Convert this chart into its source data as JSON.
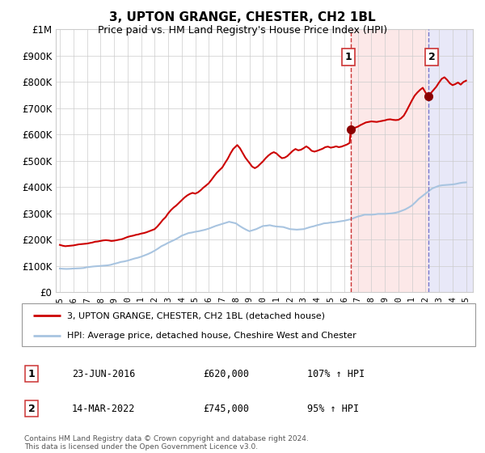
{
  "title": "3, UPTON GRANGE, CHESTER, CH2 1BL",
  "subtitle": "Price paid vs. HM Land Registry's House Price Index (HPI)",
  "ylim": [
    0,
    1000000
  ],
  "yticks": [
    0,
    100000,
    200000,
    300000,
    400000,
    500000,
    600000,
    700000,
    800000,
    900000,
    1000000
  ],
  "ytick_labels": [
    "£0",
    "£100K",
    "£200K",
    "£300K",
    "£400K",
    "£500K",
    "£600K",
    "£700K",
    "£800K",
    "£900K",
    "£1M"
  ],
  "xlim_start": 1994.7,
  "xlim_end": 2025.5,
  "xticks": [
    1995,
    1996,
    1997,
    1998,
    1999,
    2000,
    2001,
    2002,
    2003,
    2004,
    2005,
    2006,
    2007,
    2008,
    2009,
    2010,
    2011,
    2012,
    2013,
    2014,
    2015,
    2016,
    2017,
    2018,
    2019,
    2020,
    2021,
    2022,
    2023,
    2024,
    2025
  ],
  "hpi_color": "#a8c4e0",
  "price_color": "#cc0000",
  "marker_color": "#8b0000",
  "vline1_color": "#cc3333",
  "vline2_color": "#7777cc",
  "shade1_color": "#fce8e8",
  "shade2_color": "#e8e8f8",
  "legend_label1": "3, UPTON GRANGE, CHESTER, CH2 1BL (detached house)",
  "legend_label2": "HPI: Average price, detached house, Cheshire West and Chester",
  "annotation1_label": "1",
  "annotation1_date": "23-JUN-2016",
  "annotation1_price": "£620,000",
  "annotation1_hpi": "107% ↑ HPI",
  "annotation1_year": 2016.48,
  "annotation1_value": 620000,
  "annotation2_label": "2",
  "annotation2_date": "14-MAR-2022",
  "annotation2_price": "£745,000",
  "annotation2_hpi": "95% ↑ HPI",
  "annotation2_year": 2022.2,
  "annotation2_value": 745000,
  "footer": "Contains HM Land Registry data © Crown copyright and database right 2024.\nThis data is licensed under the Open Government Licence v3.0.",
  "hpi_data": [
    [
      1995.0,
      90000
    ],
    [
      1995.25,
      89000
    ],
    [
      1995.5,
      88500
    ],
    [
      1995.75,
      89000
    ],
    [
      1996.0,
      90000
    ],
    [
      1996.25,
      90500
    ],
    [
      1996.5,
      91000
    ],
    [
      1996.75,
      92000
    ],
    [
      1997.0,
      95000
    ],
    [
      1997.25,
      96500
    ],
    [
      1997.5,
      98000
    ],
    [
      1997.75,
      99000
    ],
    [
      1998.0,
      100000
    ],
    [
      1998.25,
      101000
    ],
    [
      1998.5,
      102000
    ],
    [
      1998.75,
      104000
    ],
    [
      1999.0,
      108000
    ],
    [
      1999.25,
      111000
    ],
    [
      1999.5,
      115000
    ],
    [
      1999.75,
      117000
    ],
    [
      2000.0,
      120000
    ],
    [
      2000.25,
      124000
    ],
    [
      2000.5,
      128000
    ],
    [
      2000.75,
      131000
    ],
    [
      2001.0,
      135000
    ],
    [
      2001.25,
      140000
    ],
    [
      2001.5,
      145000
    ],
    [
      2001.75,
      151000
    ],
    [
      2002.0,
      158000
    ],
    [
      2002.25,
      166000
    ],
    [
      2002.5,
      175000
    ],
    [
      2002.75,
      181000
    ],
    [
      2003.0,
      188000
    ],
    [
      2003.25,
      194000
    ],
    [
      2003.5,
      200000
    ],
    [
      2003.75,
      207000
    ],
    [
      2004.0,
      215000
    ],
    [
      2004.25,
      220000
    ],
    [
      2004.5,
      225000
    ],
    [
      2004.75,
      227000
    ],
    [
      2005.0,
      230000
    ],
    [
      2005.25,
      232000
    ],
    [
      2005.5,
      235000
    ],
    [
      2005.75,
      238000
    ],
    [
      2006.0,
      242000
    ],
    [
      2006.25,
      247000
    ],
    [
      2006.5,
      252000
    ],
    [
      2006.75,
      256000
    ],
    [
      2007.0,
      260000
    ],
    [
      2007.25,
      264000
    ],
    [
      2007.5,
      268000
    ],
    [
      2007.75,
      265000
    ],
    [
      2008.0,
      262000
    ],
    [
      2008.25,
      253000
    ],
    [
      2008.5,
      245000
    ],
    [
      2008.75,
      238000
    ],
    [
      2009.0,
      232000
    ],
    [
      2009.25,
      236000
    ],
    [
      2009.5,
      240000
    ],
    [
      2009.75,
      246000
    ],
    [
      2010.0,
      252000
    ],
    [
      2010.25,
      253000
    ],
    [
      2010.5,
      255000
    ],
    [
      2010.75,
      252000
    ],
    [
      2011.0,
      250000
    ],
    [
      2011.25,
      249000
    ],
    [
      2011.5,
      248000
    ],
    [
      2011.75,
      244000
    ],
    [
      2012.0,
      240000
    ],
    [
      2012.25,
      239000
    ],
    [
      2012.5,
      238000
    ],
    [
      2012.75,
      239000
    ],
    [
      2013.0,
      240000
    ],
    [
      2013.25,
      244000
    ],
    [
      2013.5,
      248000
    ],
    [
      2013.75,
      251000
    ],
    [
      2014.0,
      255000
    ],
    [
      2014.25,
      258000
    ],
    [
      2014.5,
      262000
    ],
    [
      2014.75,
      263000
    ],
    [
      2015.0,
      265000
    ],
    [
      2015.25,
      266000
    ],
    [
      2015.5,
      268000
    ],
    [
      2015.75,
      270000
    ],
    [
      2016.0,
      272000
    ],
    [
      2016.25,
      275000
    ],
    [
      2016.5,
      278000
    ],
    [
      2016.75,
      283000
    ],
    [
      2017.0,
      288000
    ],
    [
      2017.25,
      291000
    ],
    [
      2017.5,
      295000
    ],
    [
      2017.75,
      295000
    ],
    [
      2018.0,
      295000
    ],
    [
      2018.25,
      296000
    ],
    [
      2018.5,
      298000
    ],
    [
      2018.75,
      298000
    ],
    [
      2019.0,
      298000
    ],
    [
      2019.25,
      299000
    ],
    [
      2019.5,
      300000
    ],
    [
      2019.75,
      302000
    ],
    [
      2020.0,
      305000
    ],
    [
      2020.25,
      310000
    ],
    [
      2020.5,
      315000
    ],
    [
      2020.75,
      322000
    ],
    [
      2021.0,
      330000
    ],
    [
      2021.25,
      342000
    ],
    [
      2021.5,
      355000
    ],
    [
      2021.75,
      365000
    ],
    [
      2022.0,
      375000
    ],
    [
      2022.25,
      385000
    ],
    [
      2022.5,
      395000
    ],
    [
      2022.75,
      400000
    ],
    [
      2023.0,
      405000
    ],
    [
      2023.25,
      407000
    ],
    [
      2023.5,
      408000
    ],
    [
      2023.75,
      409000
    ],
    [
      2024.0,
      410000
    ],
    [
      2024.25,
      412000
    ],
    [
      2024.5,
      415000
    ],
    [
      2024.75,
      417000
    ],
    [
      2025.0,
      418000
    ]
  ],
  "price_data": [
    [
      1995.0,
      180000
    ],
    [
      1995.2,
      177000
    ],
    [
      1995.4,
      175000
    ],
    [
      1995.6,
      176000
    ],
    [
      1995.8,
      177000
    ],
    [
      1996.0,
      178000
    ],
    [
      1996.2,
      180000
    ],
    [
      1996.4,
      182000
    ],
    [
      1996.6,
      183000
    ],
    [
      1996.8,
      184000
    ],
    [
      1997.0,
      185000
    ],
    [
      1997.2,
      187000
    ],
    [
      1997.4,
      189000
    ],
    [
      1997.6,
      192000
    ],
    [
      1997.8,
      193000
    ],
    [
      1998.0,
      195000
    ],
    [
      1998.2,
      197000
    ],
    [
      1998.4,
      198000
    ],
    [
      1998.6,
      197000
    ],
    [
      1998.8,
      195000
    ],
    [
      1999.0,
      196000
    ],
    [
      1999.2,
      198000
    ],
    [
      1999.4,
      200000
    ],
    [
      1999.6,
      202000
    ],
    [
      1999.8,
      206000
    ],
    [
      2000.0,
      210000
    ],
    [
      2000.2,
      213000
    ],
    [
      2000.4,
      215000
    ],
    [
      2000.6,
      218000
    ],
    [
      2000.8,
      220000
    ],
    [
      2001.0,
      223000
    ],
    [
      2001.2,
      225000
    ],
    [
      2001.4,
      228000
    ],
    [
      2001.6,
      232000
    ],
    [
      2001.8,
      236000
    ],
    [
      2002.0,
      240000
    ],
    [
      2002.2,
      250000
    ],
    [
      2002.4,
      262000
    ],
    [
      2002.6,
      275000
    ],
    [
      2002.8,
      285000
    ],
    [
      2003.0,
      300000
    ],
    [
      2003.2,
      312000
    ],
    [
      2003.4,
      322000
    ],
    [
      2003.6,
      330000
    ],
    [
      2003.8,
      340000
    ],
    [
      2004.0,
      350000
    ],
    [
      2004.2,
      360000
    ],
    [
      2004.4,
      368000
    ],
    [
      2004.6,
      374000
    ],
    [
      2004.8,
      378000
    ],
    [
      2005.0,
      375000
    ],
    [
      2005.2,
      380000
    ],
    [
      2005.4,
      388000
    ],
    [
      2005.6,
      398000
    ],
    [
      2005.8,
      406000
    ],
    [
      2006.0,
      415000
    ],
    [
      2006.2,
      428000
    ],
    [
      2006.4,
      442000
    ],
    [
      2006.6,
      455000
    ],
    [
      2006.8,
      465000
    ],
    [
      2007.0,
      475000
    ],
    [
      2007.2,
      492000
    ],
    [
      2007.4,
      508000
    ],
    [
      2007.6,
      528000
    ],
    [
      2007.8,
      545000
    ],
    [
      2008.0,
      555000
    ],
    [
      2008.1,
      560000
    ],
    [
      2008.3,
      548000
    ],
    [
      2008.5,
      530000
    ],
    [
      2008.7,
      512000
    ],
    [
      2009.0,
      492000
    ],
    [
      2009.2,
      478000
    ],
    [
      2009.4,
      472000
    ],
    [
      2009.6,
      478000
    ],
    [
      2009.8,
      488000
    ],
    [
      2010.0,
      498000
    ],
    [
      2010.2,
      510000
    ],
    [
      2010.4,
      520000
    ],
    [
      2010.6,
      528000
    ],
    [
      2010.8,
      533000
    ],
    [
      2011.0,
      528000
    ],
    [
      2011.2,
      518000
    ],
    [
      2011.4,
      510000
    ],
    [
      2011.6,
      512000
    ],
    [
      2011.8,
      518000
    ],
    [
      2012.0,
      528000
    ],
    [
      2012.2,
      538000
    ],
    [
      2012.4,
      545000
    ],
    [
      2012.6,
      540000
    ],
    [
      2012.8,
      542000
    ],
    [
      2013.0,
      548000
    ],
    [
      2013.2,
      555000
    ],
    [
      2013.4,
      548000
    ],
    [
      2013.6,
      538000
    ],
    [
      2013.8,
      535000
    ],
    [
      2014.0,
      538000
    ],
    [
      2014.2,
      542000
    ],
    [
      2014.4,
      546000
    ],
    [
      2014.6,
      552000
    ],
    [
      2014.8,
      554000
    ],
    [
      2015.0,
      550000
    ],
    [
      2015.2,
      552000
    ],
    [
      2015.4,
      555000
    ],
    [
      2015.6,
      552000
    ],
    [
      2015.8,
      554000
    ],
    [
      2016.0,
      558000
    ],
    [
      2016.2,
      562000
    ],
    [
      2016.4,
      568000
    ],
    [
      2016.48,
      620000
    ],
    [
      2016.6,
      622000
    ],
    [
      2016.8,
      626000
    ],
    [
      2017.0,
      630000
    ],
    [
      2017.2,
      636000
    ],
    [
      2017.4,
      641000
    ],
    [
      2017.6,
      646000
    ],
    [
      2017.8,
      648000
    ],
    [
      2018.0,
      650000
    ],
    [
      2018.2,
      649000
    ],
    [
      2018.4,
      648000
    ],
    [
      2018.6,
      650000
    ],
    [
      2018.8,
      652000
    ],
    [
      2019.0,
      654000
    ],
    [
      2019.2,
      657000
    ],
    [
      2019.4,
      658000
    ],
    [
      2019.6,
      656000
    ],
    [
      2019.8,
      655000
    ],
    [
      2020.0,
      656000
    ],
    [
      2020.2,
      662000
    ],
    [
      2020.4,
      672000
    ],
    [
      2020.6,
      690000
    ],
    [
      2020.8,
      710000
    ],
    [
      2021.0,
      730000
    ],
    [
      2021.2,
      748000
    ],
    [
      2021.4,
      760000
    ],
    [
      2021.6,
      770000
    ],
    [
      2021.8,
      778000
    ],
    [
      2022.0,
      760000
    ],
    [
      2022.2,
      745000
    ],
    [
      2022.4,
      758000
    ],
    [
      2022.6,
      770000
    ],
    [
      2022.8,
      782000
    ],
    [
      2023.0,
      798000
    ],
    [
      2023.2,
      812000
    ],
    [
      2023.4,
      818000
    ],
    [
      2023.6,
      808000
    ],
    [
      2023.8,
      795000
    ],
    [
      2024.0,
      788000
    ],
    [
      2024.2,
      792000
    ],
    [
      2024.4,
      798000
    ],
    [
      2024.6,
      790000
    ],
    [
      2024.8,
      800000
    ],
    [
      2025.0,
      805000
    ]
  ]
}
